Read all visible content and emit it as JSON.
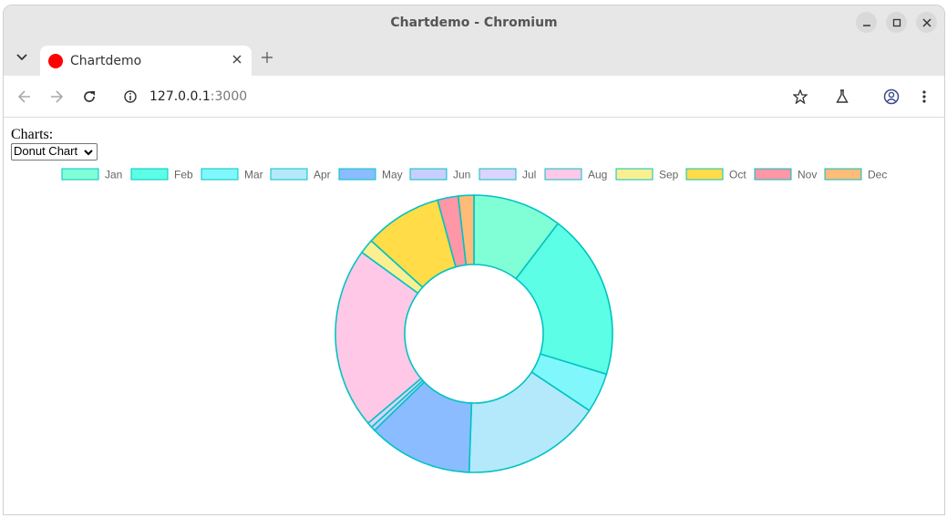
{
  "browser": {
    "window_title": "Chartdemo - Chromium",
    "tab_title": "Chartdemo",
    "url_host": "127.0.0.1",
    "url_port": ":3000"
  },
  "page": {
    "charts_label": "Charts:",
    "chart_select_value": "Donut Chart"
  },
  "chart_data": {
    "type": "pie",
    "donut": true,
    "title": "",
    "legend_position": "top",
    "border_color": "#00c3c3",
    "categories": [
      "Jan",
      "Feb",
      "Mar",
      "Apr",
      "May",
      "Jun",
      "Jul",
      "Aug",
      "Sep",
      "Oct",
      "Nov",
      "Dec"
    ],
    "values": [
      10.3,
      19.2,
      4.6,
      16.1,
      12.1,
      0.5,
      0.6,
      21.0,
      1.7,
      9.0,
      2.4,
      1.8
    ],
    "colors": [
      "#80ffd6",
      "#5cffe6",
      "#80f8fb",
      "#b3e9fb",
      "#8abcff",
      "#c8cefd",
      "#dcd4fd",
      "#ffc8e6",
      "#fbf090",
      "#ffdc48",
      "#ff97a6",
      "#ffbb78"
    ]
  }
}
